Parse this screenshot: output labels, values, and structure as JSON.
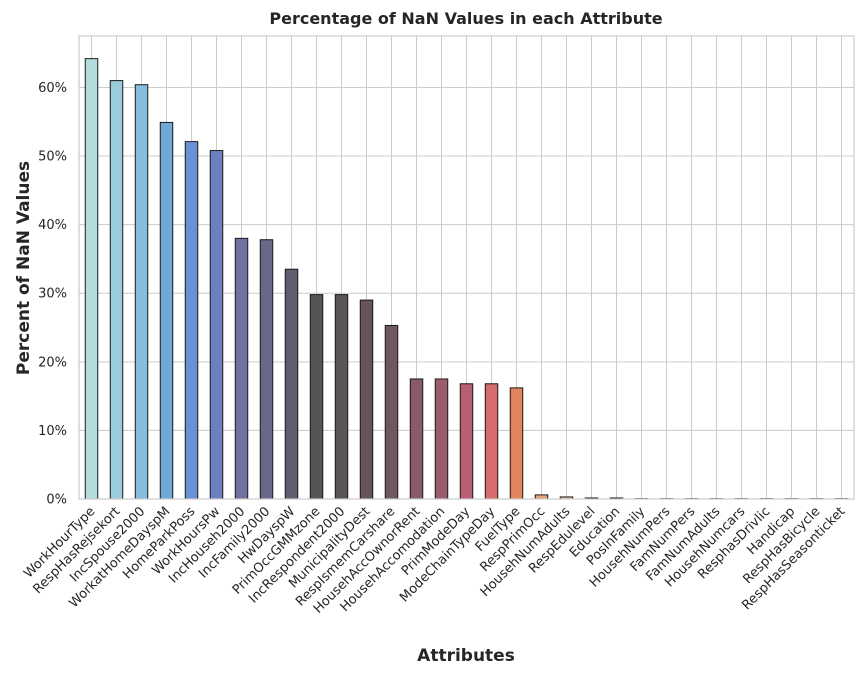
{
  "chart_data": {
    "type": "bar",
    "title": "Percentage of NaN Values in each Attribute",
    "xlabel": "Attributes",
    "ylabel": "Percent of NaN Values",
    "ylim": [
      0,
      67.5
    ],
    "yticks": [
      0,
      10,
      20,
      30,
      40,
      50,
      60
    ],
    "ytick_labels": [
      "0%",
      "10%",
      "20%",
      "30%",
      "40%",
      "50%",
      "60%"
    ],
    "grid": true,
    "categories": [
      "WorkHourType",
      "RespHasRejsekort",
      "IncSpouse2000",
      "WorkatHomeDayspM",
      "HomeParkPoss",
      "WorkHoursPw",
      "IncHouseh2000",
      "IncFamily2000",
      "HwDayspW",
      "PrimOccGMMzone",
      "IncRespondent2000",
      "MunicipalityDest",
      "RespIsmemCarshare",
      "HousehAccOwnorRent",
      "HousehAccomodation",
      "PrimModeDay",
      "ModeChainTypeDay",
      "FuelType",
      "RespPrimOcc",
      "HousehNumAdults",
      "RespEdulevel",
      "Education",
      "PosInFamily",
      "HousehNumPers",
      "FamNumPers",
      "FamNumAdults",
      "HousehNumcars",
      "ResphasDrivlic",
      "Handicap",
      "RespHasBicycle",
      "RespHasSeasonticket"
    ],
    "values": [
      64.2,
      61.0,
      60.4,
      54.9,
      52.1,
      50.8,
      38.0,
      37.8,
      33.5,
      29.8,
      29.8,
      29.0,
      25.3,
      17.5,
      17.5,
      16.8,
      16.8,
      16.2,
      0.6,
      0.3,
      0.15,
      0.15,
      0.05,
      0.05,
      0.05,
      0.05,
      0.05,
      0.05,
      0.05,
      0.05,
      0.05
    ],
    "colors": [
      "#b3dcde",
      "#9ccbd9",
      "#86bddd",
      "#71a8d8",
      "#6992d4",
      "#6e7fc0",
      "#71719f",
      "#686889",
      "#5e5e6e",
      "#555555",
      "#5b5656",
      "#655558",
      "#6f575d",
      "#8a5a66",
      "#9b5d6c",
      "#b85f71",
      "#d66c6c",
      "#e2855f",
      "#e8a07a",
      "#e9b4a0",
      "#e8c6b9",
      "#eadbd4",
      "#eae3e0",
      "#e8e8e8",
      "#e8e8e8",
      "#e8e8e8",
      "#e8e8e8",
      "#e8e8e8",
      "#e8e8e8",
      "#e8e8e8",
      "#e8e8e8"
    ]
  }
}
